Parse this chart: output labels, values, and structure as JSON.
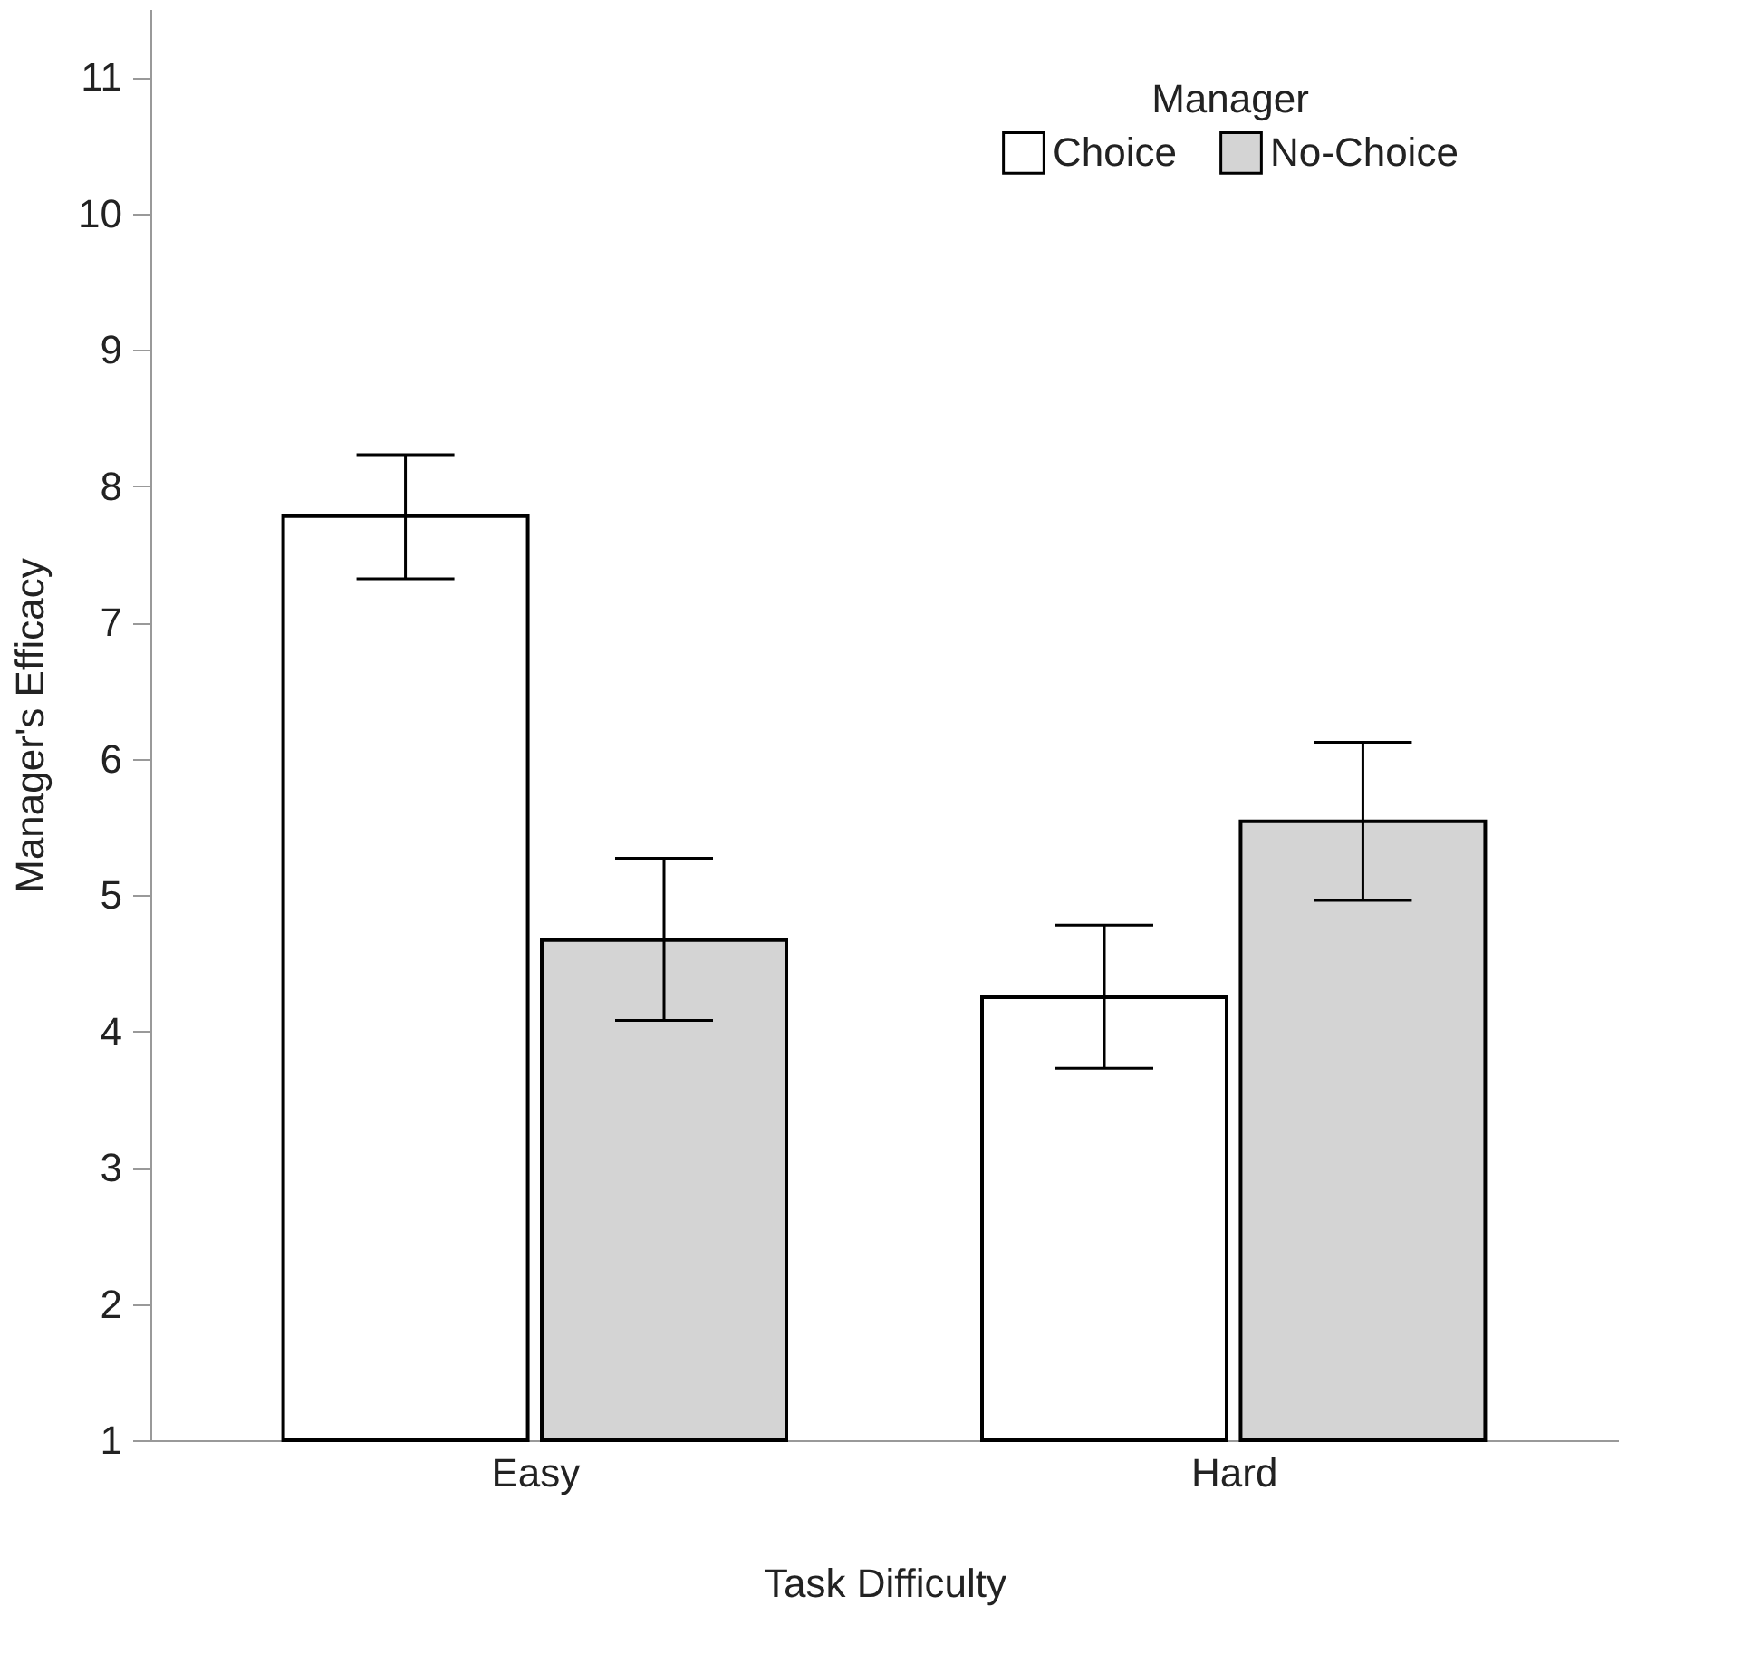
{
  "chart_data": {
    "type": "bar",
    "xlabel": "Task Difficulty",
    "ylabel": "Manager's Efficacy",
    "legend_title": "Manager",
    "legend": "top right",
    "grid": false,
    "categories": [
      "Easy",
      "Hard"
    ],
    "series": [
      {
        "name": "Choice",
        "color": "#ffffff",
        "values": [
          7.78,
          4.25
        ],
        "errors": [
          [
            7.32,
            8.23
          ],
          [
            3.73,
            4.78
          ]
        ]
      },
      {
        "name": "No-Choice",
        "color": "#d4d4d4",
        "values": [
          4.67,
          5.54
        ],
        "errors": [
          [
            4.08,
            5.27
          ],
          [
            4.96,
            6.12
          ]
        ]
      }
    ],
    "ylim": [
      1,
      11.5
    ],
    "yticks": [
      1,
      2,
      3,
      4,
      5,
      6,
      7,
      8,
      9,
      10,
      11
    ]
  }
}
